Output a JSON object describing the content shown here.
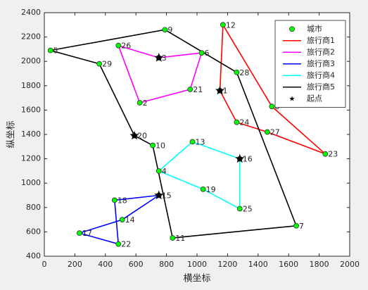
{
  "chart_data": {
    "type": "route",
    "xlabel": "横坐标",
    "ylabel": "纵坐标",
    "xlim": [
      0,
      2000
    ],
    "ylim": [
      400,
      2400
    ],
    "xticks": [
      0,
      200,
      400,
      600,
      800,
      1000,
      1200,
      1400,
      1600,
      1800,
      2000
    ],
    "yticks": [
      400,
      600,
      800,
      1000,
      1200,
      1400,
      1600,
      1800,
      2000,
      2200,
      2400
    ],
    "grid": false,
    "legend": "upper right",
    "cities": {
      "name": "城市",
      "color": "#00ff00",
      "labels": [
        "1",
        "2",
        "3",
        "4",
        "5",
        "6",
        "7",
        "8",
        "9",
        "10",
        "11",
        "12",
        "13",
        "14",
        "15",
        "16",
        "17",
        "18",
        "19",
        "20",
        "21",
        "22",
        "23",
        "24",
        "25",
        "26",
        "27",
        "28",
        "29"
      ],
      "x": [
        1150,
        625,
        750,
        750,
        40,
        1030,
        1650,
        1490,
        790,
        710,
        840,
        1170,
        970,
        510,
        750,
        1280,
        230,
        460,
        1040,
        590,
        955,
        485,
        1840,
        1260,
        1280,
        485,
        1460,
        1260,
        360
      ],
      "y": [
        1760,
        1660,
        2030,
        1100,
        2090,
        2070,
        650,
        1630,
        2260,
        1310,
        550,
        2300,
        1340,
        700,
        900,
        1200,
        590,
        860,
        950,
        1390,
        1770,
        500,
        1240,
        1500,
        790,
        2130,
        1420,
        1910,
        1980
      ]
    },
    "series": [
      {
        "name": "旅行商1",
        "color": "#ff0000",
        "x": [
          1150,
          1170,
          1490,
          1840,
          1460,
          1260,
          1150
        ],
        "y": [
          1760,
          2300,
          1630,
          1240,
          1420,
          1500,
          1760
        ]
      },
      {
        "name": "旅行商2",
        "color": "#ff00ff",
        "x": [
          750,
          1030,
          955,
          625,
          485,
          750
        ],
        "y": [
          2030,
          2070,
          1770,
          1660,
          2130,
          2030
        ]
      },
      {
        "name": "旅行商3",
        "color": "#0000ff",
        "x": [
          750,
          510,
          230,
          485,
          460,
          750
        ],
        "y": [
          900,
          700,
          590,
          500,
          860,
          900
        ]
      },
      {
        "name": "旅行商4",
        "color": "#00ffff",
        "x": [
          1280,
          970,
          750,
          1040,
          1280,
          1280
        ],
        "y": [
          1200,
          1340,
          1100,
          950,
          790,
          1200
        ]
      },
      {
        "name": "旅行商5",
        "color": "#000000",
        "x": [
          590,
          710,
          840,
          1650,
          1260,
          790,
          40,
          360,
          590
        ],
        "y": [
          1390,
          1310,
          550,
          650,
          1910,
          2260,
          2090,
          1980,
          1390
        ]
      }
    ],
    "starts": {
      "name": "起点",
      "color": "#000000",
      "x": [
        1150,
        750,
        750,
        1280,
        590
      ],
      "y": [
        1760,
        2030,
        900,
        1200,
        1390
      ]
    }
  }
}
